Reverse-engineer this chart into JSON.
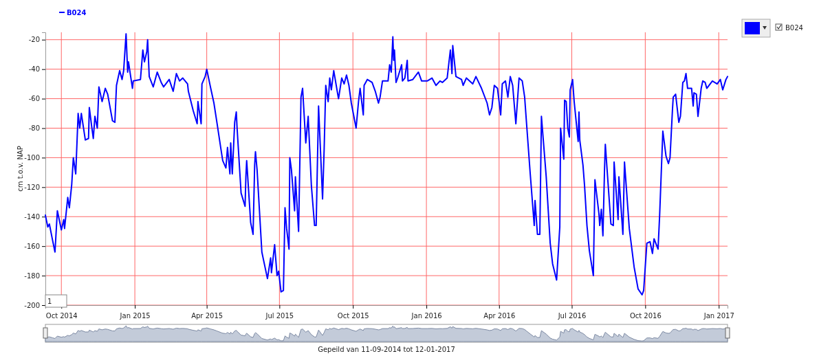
{
  "chart_data": {
    "type": "line",
    "ylabel": "cm t.o.v. NAP",
    "annotations": [
      "Gepeild van 11-09-2014 tot 12-01-2017",
      "1"
    ],
    "xlim": [
      "2014-09-11",
      "2017-01-12"
    ],
    "xticks": [
      {
        "value": "2014-10-01",
        "label": "Oct 2014"
      },
      {
        "value": "2015-01-01",
        "label": "Jan 2015"
      },
      {
        "value": "2015-04-01",
        "label": "Apr 2015"
      },
      {
        "value": "2015-07-01",
        "label": "Jul 2015"
      },
      {
        "value": "2015-10-01",
        "label": "Oct 2015"
      },
      {
        "value": "2016-01-01",
        "label": "Jan 2016"
      },
      {
        "value": "2016-04-01",
        "label": "Apr 2016"
      },
      {
        "value": "2016-07-01",
        "label": "Jul 2016"
      },
      {
        "value": "2016-10-01",
        "label": "Oct 2016"
      },
      {
        "value": "2017-01-01",
        "label": "Jan 2017"
      }
    ],
    "ylim": [
      -200,
      -15
    ],
    "yticks": [
      -200,
      -180,
      -160,
      -140,
      -120,
      -100,
      -80,
      -60,
      -40,
      -20
    ],
    "grid": true,
    "legend": "top left",
    "marker": "none",
    "line_style": "solid",
    "x": [
      "2014-09-11",
      "2014-09-14",
      "2014-09-16",
      "2014-09-20",
      "2014-09-23",
      "2014-09-26",
      "2014-10-01",
      "2014-10-04",
      "2014-10-05",
      "2014-10-09",
      "2014-10-11",
      "2014-10-14",
      "2014-10-16",
      "2014-10-19",
      "2014-10-22",
      "2014-10-24",
      "2014-10-26",
      "2014-10-31",
      "2014-11-04",
      "2014-11-05",
      "2014-11-08",
      "2014-11-10",
      "2014-11-12",
      "2014-11-15",
      "2014-11-17",
      "2014-11-21",
      "2014-11-25",
      "2014-11-28",
      "2014-12-04",
      "2014-12-07",
      "2014-12-09",
      "2014-12-13",
      "2014-12-16",
      "2014-12-18",
      "2014-12-21",
      "2014-12-23",
      "2014-12-24",
      "2014-12-29",
      "2014-12-30",
      "2015-01-08",
      "2015-01-11",
      "2015-01-13",
      "2015-01-16",
      "2015-01-17",
      "2015-01-19",
      "2015-01-24",
      "2015-01-29",
      "2015-02-03",
      "2015-02-06",
      "2015-02-13",
      "2015-02-18",
      "2015-02-22",
      "2015-02-26",
      "2015-03-02",
      "2015-03-08",
      "2015-03-09",
      "2015-03-15",
      "2015-03-20",
      "2015-03-21",
      "2015-03-25",
      "2015-03-26",
      "2015-03-30",
      "2015-04-01",
      "2015-04-06",
      "2015-04-10",
      "2015-04-14",
      "2015-04-19",
      "2015-04-21",
      "2015-04-25",
      "2015-04-27",
      "2015-04-30",
      "2015-05-01",
      "2015-05-03",
      "2015-05-06",
      "2015-05-08",
      "2015-05-09",
      "2015-05-14",
      "2015-05-19",
      "2015-05-20",
      "2015-05-21",
      "2015-05-26",
      "2015-05-29",
      "2015-05-31",
      "2015-06-01",
      "2015-06-03",
      "2015-06-06",
      "2015-06-09",
      "2015-06-16",
      "2015-06-20",
      "2015-06-21",
      "2015-06-25",
      "2015-06-28",
      "2015-06-30",
      "2015-07-03",
      "2015-07-06",
      "2015-07-08",
      "2015-07-10",
      "2015-07-13",
      "2015-07-14",
      "2015-07-16",
      "2015-07-20",
      "2015-07-21",
      "2015-07-25",
      "2015-07-28",
      "2015-07-30",
      "2015-08-03",
      "2015-08-06",
      "2015-08-10",
      "2015-08-14",
      "2015-08-16",
      "2015-08-19",
      "2015-08-24",
      "2015-08-26",
      "2015-08-28",
      "2015-08-31",
      "2015-09-02",
      "2015-09-04",
      "2015-09-07",
      "2015-09-12",
      "2015-09-13",
      "2015-09-17",
      "2015-09-20",
      "2015-09-23",
      "2015-09-26",
      "2015-09-29",
      "2015-10-05",
      "2015-10-08",
      "2015-10-10",
      "2015-10-14",
      "2015-10-15",
      "2015-10-19",
      "2015-10-25",
      "2015-10-29",
      "2015-11-02",
      "2015-11-04",
      "2015-11-07",
      "2015-11-14",
      "2015-11-16",
      "2015-11-18",
      "2015-11-20",
      "2015-11-21",
      "2015-11-22",
      "2015-11-24",
      "2015-11-26",
      "2015-12-01",
      "2015-12-02",
      "2015-12-05",
      "2015-12-08",
      "2015-12-09",
      "2015-12-15",
      "2015-12-22",
      "2015-12-26",
      "2016-01-02",
      "2016-01-08",
      "2016-01-13",
      "2016-01-18",
      "2016-01-21",
      "2016-01-27",
      "2016-01-31",
      "2016-02-02",
      "2016-02-03",
      "2016-02-07",
      "2016-02-14",
      "2016-02-16",
      "2016-02-20",
      "2016-02-28",
      "2016-03-03",
      "2016-03-10",
      "2016-03-17",
      "2016-03-20",
      "2016-03-23",
      "2016-03-26",
      "2016-03-30",
      "2016-04-03",
      "2016-04-05",
      "2016-04-09",
      "2016-04-12",
      "2016-04-15",
      "2016-04-18",
      "2016-04-22",
      "2016-04-26",
      "2016-04-30",
      "2016-05-03",
      "2016-05-05",
      "2016-05-10",
      "2016-05-15",
      "2016-05-16",
      "2016-05-19",
      "2016-05-22",
      "2016-05-24",
      "2016-05-30",
      "2016-06-04",
      "2016-06-07",
      "2016-06-12",
      "2016-06-16",
      "2016-06-17",
      "2016-06-21",
      "2016-06-22",
      "2016-06-24",
      "2016-06-26",
      "2016-06-28",
      "2016-06-29",
      "2016-07-02",
      "2016-07-04",
      "2016-07-09",
      "2016-07-10",
      "2016-07-11",
      "2016-07-15",
      "2016-07-17",
      "2016-07-20",
      "2016-07-23",
      "2016-07-28",
      "2016-07-30",
      "2016-08-04",
      "2016-08-05",
      "2016-08-07",
      "2016-08-09",
      "2016-08-11",
      "2016-08-12",
      "2016-08-19",
      "2016-08-22",
      "2016-08-23",
      "2016-08-28",
      "2016-08-29",
      "2016-09-03",
      "2016-09-05",
      "2016-09-11",
      "2016-09-17",
      "2016-09-22",
      "2016-09-27",
      "2016-09-29",
      "2016-10-03",
      "2016-10-07",
      "2016-10-10",
      "2016-10-12",
      "2016-10-17",
      "2016-10-19",
      "2016-10-23",
      "2016-10-27",
      "2016-10-30",
      "2016-11-01",
      "2016-11-04",
      "2016-11-05",
      "2016-11-08",
      "2016-11-12",
      "2016-11-14",
      "2016-11-17",
      "2016-11-19",
      "2016-11-21",
      "2016-11-23",
      "2016-11-28",
      "2016-11-30",
      "2016-12-01",
      "2016-12-04",
      "2016-12-06",
      "2016-12-10",
      "2016-12-12",
      "2016-12-15",
      "2016-12-17",
      "2016-12-24",
      "2016-12-30",
      "2017-01-03",
      "2017-01-06",
      "2017-01-10",
      "2017-01-12"
    ],
    "series": [
      {
        "name": "B024",
        "color": "#0000ff",
        "values": [
          -139,
          -147,
          -145,
          -156,
          -164,
          -136,
          -149,
          -142,
          -148,
          -127,
          -134,
          -118,
          -100,
          -111,
          -70,
          -80,
          -70,
          -88,
          -87,
          -66,
          -79,
          -87,
          -72,
          -80,
          -52,
          -62,
          -53,
          -57,
          -75,
          -76,
          -51,
          -41,
          -47,
          -41,
          -16,
          -42,
          -35,
          -53,
          -48,
          -47,
          -27,
          -35,
          -28,
          -20,
          -45,
          -52,
          -42,
          -49,
          -52,
          -47,
          -55,
          -43,
          -48,
          -46,
          -50,
          -55,
          -68,
          -77,
          -62,
          -77,
          -50,
          -45,
          -40,
          -53,
          -63,
          -77,
          -95,
          -102,
          -107,
          -93,
          -111,
          -90,
          -111,
          -76,
          -69,
          -80,
          -124,
          -133,
          -113,
          -102,
          -144,
          -152,
          -105,
          -96,
          -108,
          -136,
          -164,
          -182,
          -168,
          -178,
          -159,
          -180,
          -177,
          -191,
          -190,
          -134,
          -148,
          -162,
          -100,
          -108,
          -136,
          -113,
          -150,
          -59,
          -53,
          -90,
          -72,
          -119,
          -146,
          -146,
          -65,
          -128,
          -94,
          -51,
          -62,
          -46,
          -54,
          -41,
          -57,
          -60,
          -46,
          -50,
          -44,
          -51,
          -63,
          -80,
          -62,
          -53,
          -71,
          -51,
          -47,
          -49,
          -55,
          -63,
          -59,
          -48,
          -48,
          -37,
          -42,
          -18,
          -34,
          -27,
          -49,
          -46,
          -37,
          -48,
          -46,
          -34,
          -48,
          -47,
          -42,
          -48,
          -48,
          -46,
          -51,
          -48,
          -49,
          -46,
          -27,
          -43,
          -24,
          -45,
          -47,
          -51,
          -46,
          -50,
          -45,
          -53,
          -63,
          -71,
          -66,
          -51,
          -53,
          -71,
          -50,
          -48,
          -59,
          -45,
          -51,
          -77,
          -46,
          -48,
          -59,
          -74,
          -111,
          -146,
          -129,
          -152,
          -152,
          -72,
          -113,
          -158,
          -172,
          -183,
          -147,
          -80,
          -101,
          -61,
          -62,
          -80,
          -86,
          -54,
          -47,
          -62,
          -89,
          -69,
          -88,
          -105,
          -119,
          -146,
          -163,
          -180,
          -115,
          -138,
          -146,
          -135,
          -153,
          -108,
          -91,
          -145,
          -146,
          -103,
          -142,
          -113,
          -152,
          -103,
          -148,
          -174,
          -189,
          -193,
          -190,
          -158,
          -157,
          -165,
          -155,
          -162,
          -139,
          -82,
          -99,
          -104,
          -100,
          -68,
          -59,
          -57,
          -76,
          -72,
          -49,
          -48,
          -43,
          -53,
          -53,
          -65,
          -56,
          -57,
          -72,
          -53,
          -48,
          -49,
          -53,
          -48,
          -50,
          -47,
          -54,
          -47,
          -45
        ]
      }
    ]
  }
}
